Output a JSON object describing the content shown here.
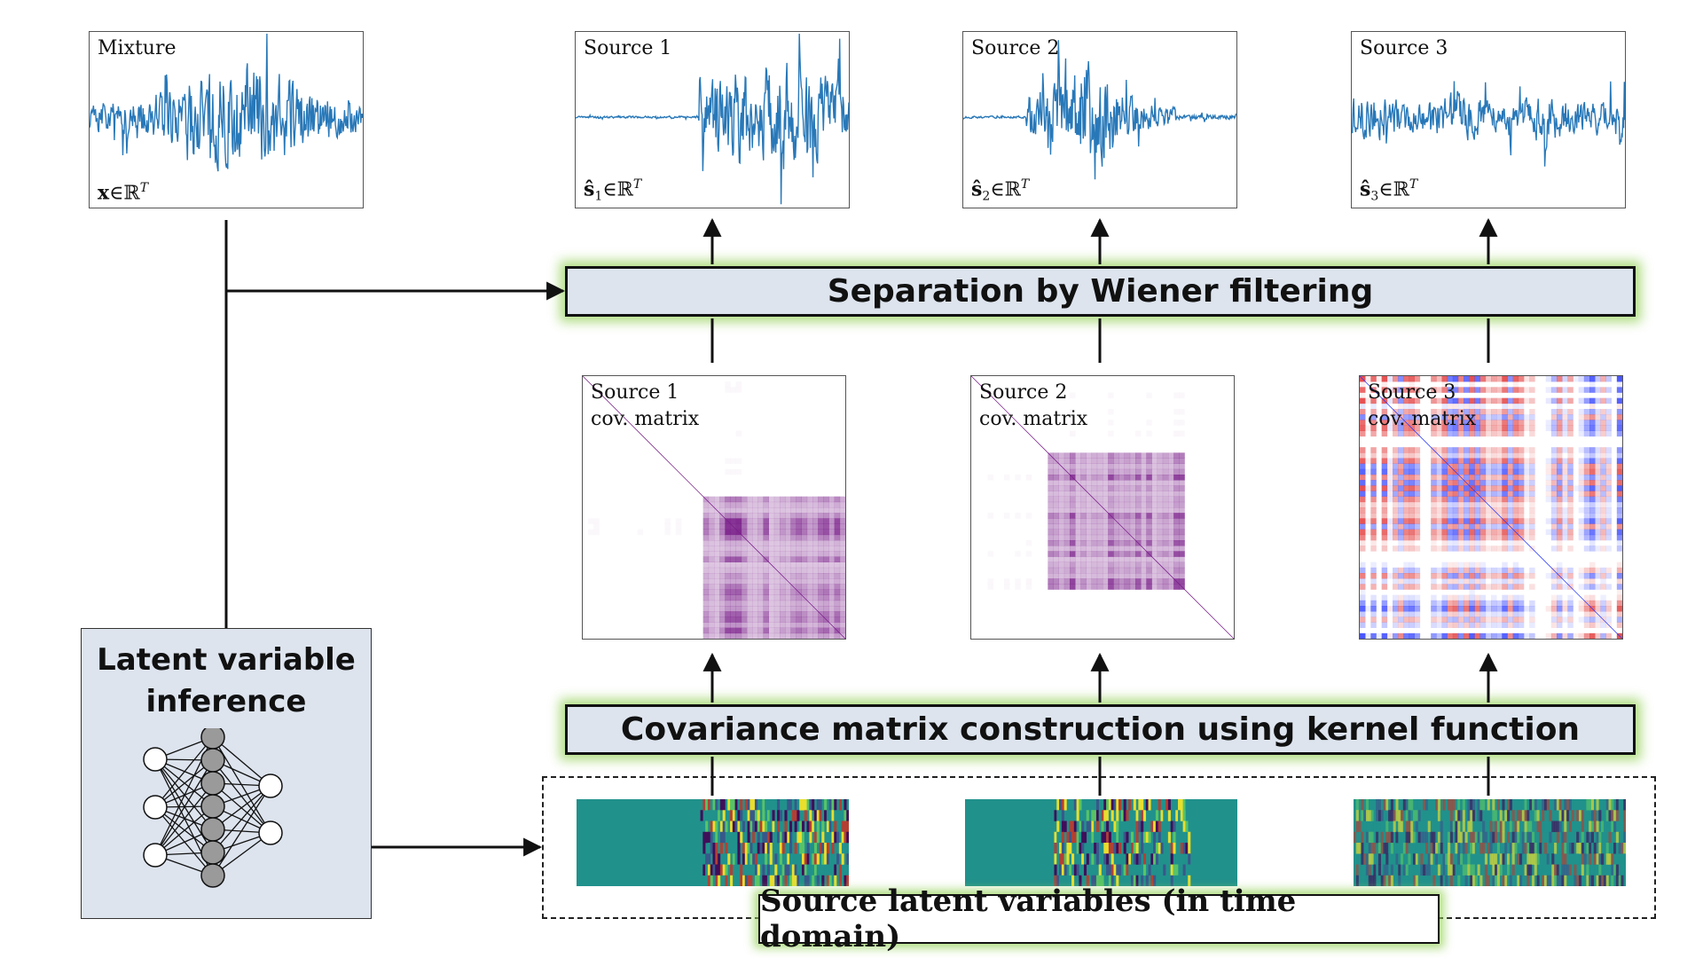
{
  "waveform_panels": [
    {
      "id": "mixture",
      "title": "Mixture",
      "symbol": "x",
      "symbol_subscript": "",
      "symbol_hat": false
    },
    {
      "id": "source1",
      "title": "Source 1",
      "symbol": "s",
      "symbol_subscript": "1",
      "symbol_hat": true
    },
    {
      "id": "source2",
      "title": "Source 2",
      "symbol": "s",
      "symbol_subscript": "2",
      "symbol_hat": true
    },
    {
      "id": "source3",
      "title": "Source 3",
      "symbol": "s",
      "symbol_subscript": "3",
      "symbol_hat": true
    }
  ],
  "membership": "∈ℝ",
  "membership_exponent": "T",
  "wiener_label": "Separation by Wiener filtering",
  "covariance_panels": [
    {
      "title": "Source 1\ncov. matrix"
    },
    {
      "title": "Source 2\ncov. matrix"
    },
    {
      "title": "Source 3\ncov. matrix"
    }
  ],
  "covariance_label": "Covariance matrix construction using kernel function",
  "latent_inference_label": "Latent variable\ninference",
  "source_latent_label": "Source latent variables (in time domain)",
  "colors": {
    "waveform": "#2878b8",
    "bar_fill": "#dde4ee",
    "glow": "#9fd35a",
    "cov_purple": "#7a1f8a",
    "cov_red": "#e03030",
    "cov_blue": "#2a3aff",
    "latent_teal": "#21918c",
    "neuron_gray": "#9a9a9a"
  },
  "icons": [
    "neural-network-icon",
    "arrow-icon"
  ]
}
